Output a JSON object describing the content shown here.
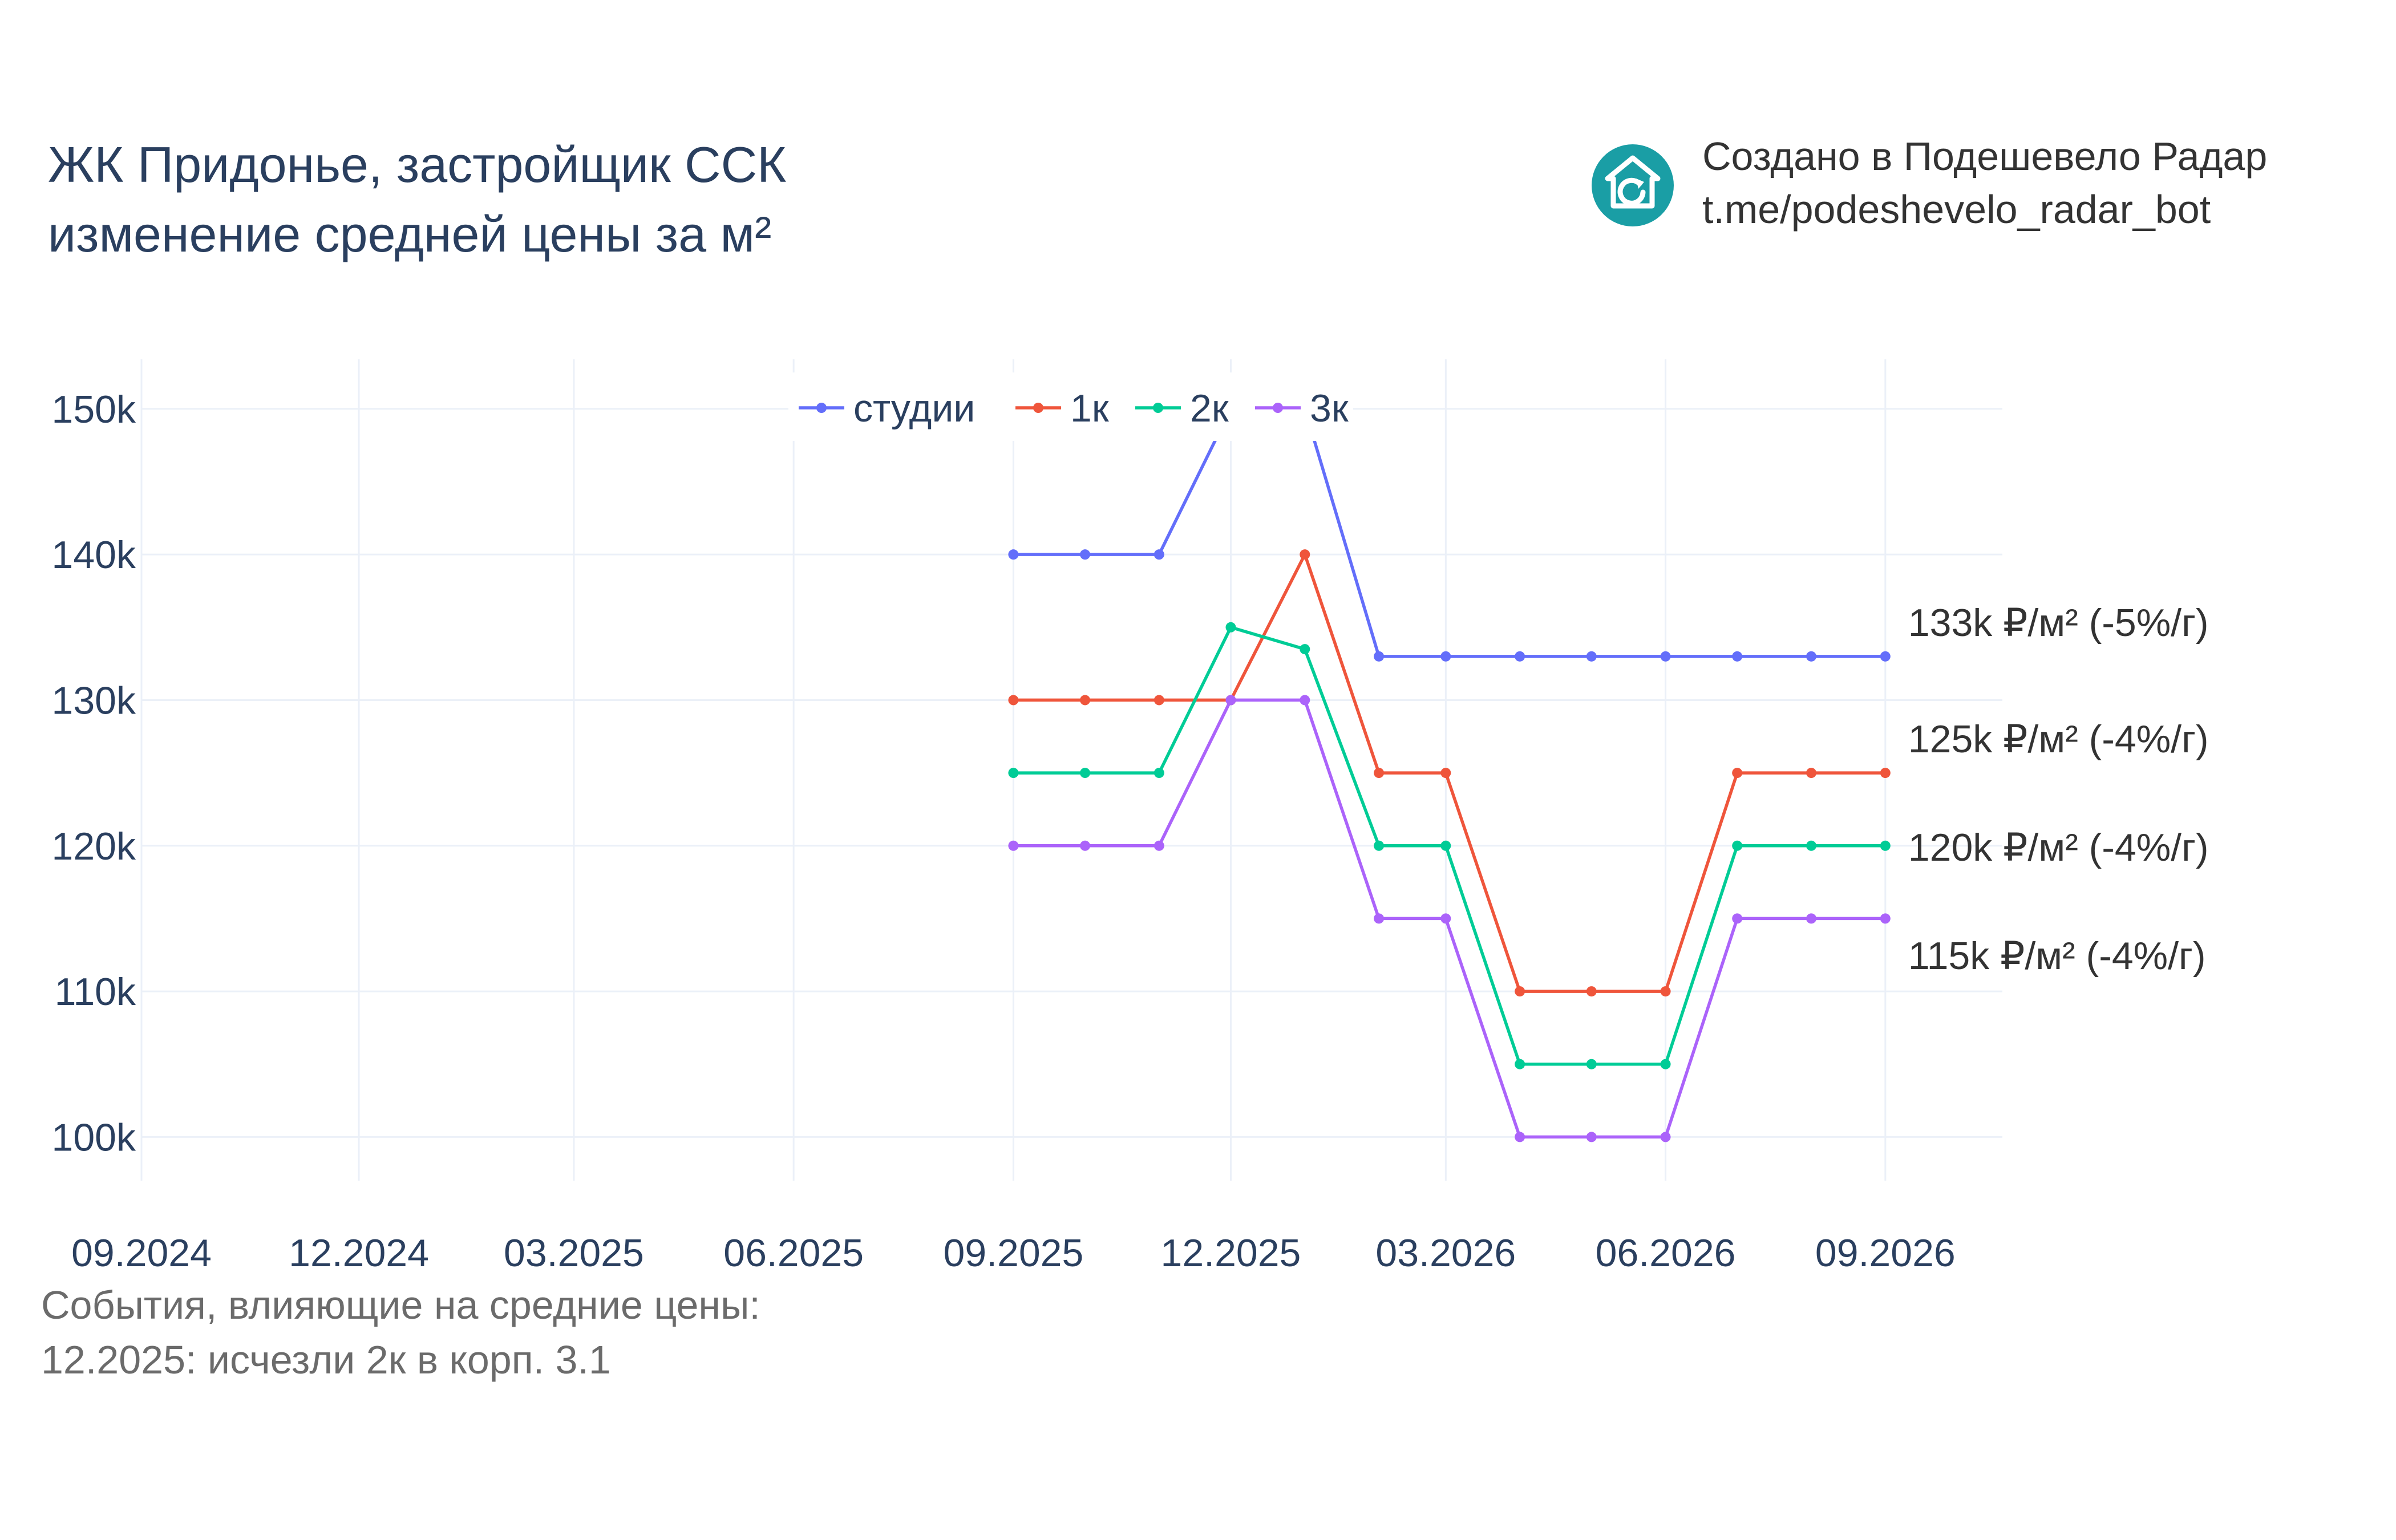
{
  "header": {
    "title_line1": "ЖК Придонье, застройщик ССК",
    "title_line2": "изменение средней цены за м²"
  },
  "brand": {
    "logo_icon": "house-refresh-icon",
    "logo_color": "#1a9ea5",
    "line1": "Создано в Подешевело Радар",
    "line2": "t.me/podeshevelo_radar_bot"
  },
  "notes": {
    "heading": "События, влияющие на средние цены:",
    "items": [
      "12.2025: исчезли 2к в корп. 3.1"
    ]
  },
  "chart_data": {
    "type": "line",
    "x_ticks": [
      "09.2024",
      "12.2024",
      "03.2025",
      "06.2025",
      "09.2025",
      "12.2025",
      "03.2026",
      "06.2026",
      "09.2026"
    ],
    "y_ticks": [
      100000,
      110000,
      120000,
      130000,
      140000,
      150000
    ],
    "y_tick_labels": [
      "100k",
      "110k",
      "120k",
      "130k",
      "140k",
      "150k"
    ],
    "x_range": [
      "2024-09-01",
      "2026-10-20"
    ],
    "y_range": [
      97000,
      153400
    ],
    "x": [
      "2025-09-01",
      "2025-10-01",
      "2025-11-01",
      "2025-12-01",
      "2026-01-01",
      "2026-02-01",
      "2026-03-01",
      "2026-04-01",
      "2026-05-01",
      "2026-06-01",
      "2026-07-01",
      "2026-08-01",
      "2026-09-01"
    ],
    "grid": true,
    "legend_position": "top-center",
    "series": [
      {
        "name": "студии",
        "color": "#636efa",
        "values": [
          140000,
          140000,
          140000,
          150000,
          150000,
          133000,
          133000,
          133000,
          133000,
          133000,
          133000,
          133000,
          133000
        ],
        "end_label": "133k ₽/м² (-5%/г)"
      },
      {
        "name": "1к",
        "color": "#ef553b",
        "values": [
          130000,
          130000,
          130000,
          130000,
          140000,
          125000,
          125000,
          110000,
          110000,
          110000,
          125000,
          125000,
          125000
        ],
        "end_label": "125k ₽/м² (-4%/г)"
      },
      {
        "name": "2к",
        "color": "#00cc96",
        "values": [
          125000,
          125000,
          125000,
          135000,
          133500,
          120000,
          120000,
          105000,
          105000,
          105000,
          120000,
          120000,
          120000
        ],
        "end_label": "120k ₽/м² (-4%/г)"
      },
      {
        "name": "3к",
        "color": "#ab63fa",
        "values": [
          120000,
          120000,
          120000,
          130000,
          130000,
          115000,
          115000,
          100000,
          100000,
          100000,
          115000,
          115000,
          115000
        ],
        "end_label": "115k ₽/м² (-4%/г)"
      }
    ]
  }
}
